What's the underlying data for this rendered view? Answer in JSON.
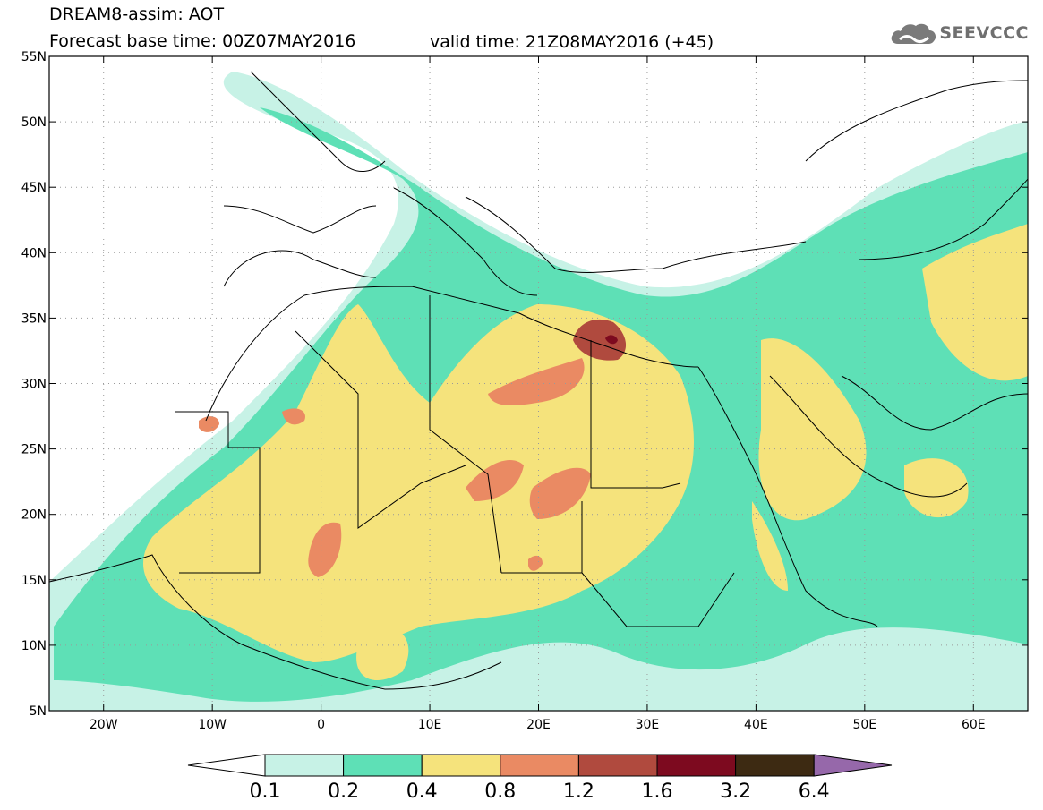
{
  "header": {
    "line1": "DREAM8-assim: AOT",
    "line2": "Forecast base time: 00Z07MAY2016",
    "line3": "valid time: 21Z08MAY2016 (+45)"
  },
  "logo": {
    "text": "SEEVCCC",
    "icon": "cloud-icon",
    "color": "#6f6f6f"
  },
  "map": {
    "lon_range": [
      -25,
      65
    ],
    "lat_range": [
      5,
      55
    ],
    "lon_ticks": [
      {
        "v": -20,
        "label": "20W"
      },
      {
        "v": -10,
        "label": "10W"
      },
      {
        "v": 0,
        "label": "0"
      },
      {
        "v": 10,
        "label": "10E"
      },
      {
        "v": 20,
        "label": "20E"
      },
      {
        "v": 30,
        "label": "30E"
      },
      {
        "v": 40,
        "label": "40E"
      },
      {
        "v": 50,
        "label": "50E"
      },
      {
        "v": 60,
        "label": "60E"
      }
    ],
    "lat_ticks": [
      {
        "v": 55,
        "label": "55N"
      },
      {
        "v": 50,
        "label": "50N"
      },
      {
        "v": 45,
        "label": "45N"
      },
      {
        "v": 40,
        "label": "40N"
      },
      {
        "v": 35,
        "label": "35N"
      },
      {
        "v": 30,
        "label": "30N"
      },
      {
        "v": 25,
        "label": "25N"
      },
      {
        "v": 20,
        "label": "20N"
      },
      {
        "v": 15,
        "label": "15N"
      },
      {
        "v": 10,
        "label": "10N"
      },
      {
        "v": 5,
        "label": "5N"
      }
    ],
    "gridlines": "dotted"
  },
  "colorbar": {
    "boxes": [
      "#c7f2e6",
      "#5ee0b6",
      "#f5e37c",
      "#ea8a63",
      "#b04a3e",
      "#7d0a1f",
      "#3d2a12"
    ],
    "low_color": "#ffffff",
    "high_color": "#9668aa",
    "labels": [
      "0.1",
      "0.2",
      "0.4",
      "0.8",
      "1.2",
      "1.6",
      "3.2",
      "6.4"
    ]
  }
}
